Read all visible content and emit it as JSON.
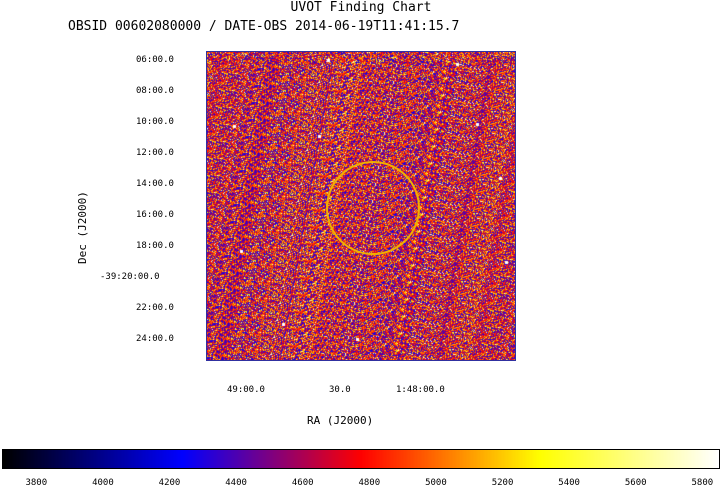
{
  "chart_data": {
    "type": "heatmap",
    "title": "UVOT Finding Chart",
    "subtitle": "OBSID 00602080000 / DATE-OBS 2014-06-19T11:41:15.7",
    "xlabel": "RA (J2000)",
    "ylabel": "Dec (J2000)",
    "x_ticks": [
      "49:00.0",
      "30.0",
      "1:48:00.0"
    ],
    "y_ticks": [
      "06:00.0",
      "08:00.0",
      "10:00.0",
      "12:00.0",
      "14:00.0",
      "16:00.0",
      "18:00.0",
      "-39:20:00.0",
      "22:00.0",
      "24:00.0"
    ],
    "colorbar": {
      "ticks": [
        3800,
        4000,
        4200,
        4400,
        4600,
        4800,
        5000,
        5200,
        5400,
        5600,
        5800
      ],
      "range": [
        3700,
        5850
      ],
      "stops": [
        "#000000",
        "#0000ff",
        "#ff0000",
        "#ffff00",
        "#ffffff"
      ]
    },
    "target_circle_color": "#f0b000"
  }
}
